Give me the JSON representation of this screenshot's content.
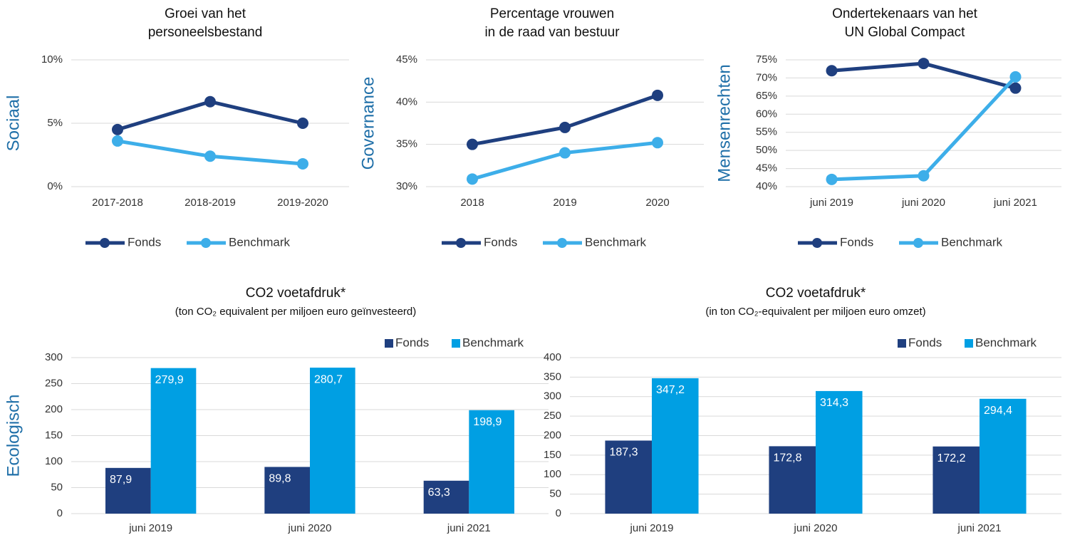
{
  "chart_data": [
    {
      "type": "line",
      "title": [
        "Groei van het",
        "personeelsbestand"
      ],
      "ylabel": "Sociaal",
      "categories": [
        "2017-2018",
        "2018-2019",
        "2019-2020"
      ],
      "series": [
        {
          "name": "Fonds",
          "color": "#1f3f7f",
          "values": [
            4.5,
            6.7,
            5.0
          ]
        },
        {
          "name": "Benchmark",
          "color": "#3daee9",
          "values": [
            3.6,
            2.4,
            1.8
          ]
        }
      ],
      "ylim": [
        0,
        10
      ],
      "yticks": [
        {
          "value": 0,
          "label": "0%"
        },
        {
          "value": 5,
          "label": "5%"
        },
        {
          "value": 10,
          "label": "10%"
        }
      ],
      "grid": true,
      "legend": "bottom"
    },
    {
      "type": "line",
      "title": [
        "Percentage vrouwen",
        "in de raad van bestuur"
      ],
      "ylabel": "Governance",
      "categories": [
        "2018",
        "2019",
        "2020"
      ],
      "series": [
        {
          "name": "Fonds",
          "color": "#1f3f7f",
          "values": [
            35,
            37,
            40.8
          ]
        },
        {
          "name": "Benchmark",
          "color": "#3daee9",
          "values": [
            30.9,
            34,
            35.2
          ]
        }
      ],
      "ylim": [
        30,
        45
      ],
      "yticks": [
        {
          "value": 30,
          "label": "30%"
        },
        {
          "value": 35,
          "label": "35%"
        },
        {
          "value": 40,
          "label": "40%"
        },
        {
          "value": 45,
          "label": "45%"
        }
      ],
      "grid": true,
      "legend": "bottom"
    },
    {
      "type": "line",
      "title": [
        "Ondertekenaars van het",
        "UN Global Compact"
      ],
      "ylabel": "Mensenrechten",
      "categories": [
        "juni 2019",
        "juni 2020",
        "juni 2021"
      ],
      "series": [
        {
          "name": "Fonds",
          "color": "#1f3f7f",
          "values": [
            72,
            74,
            67.2
          ]
        },
        {
          "name": "Benchmark",
          "color": "#3daee9",
          "values": [
            42,
            43,
            70.3
          ]
        }
      ],
      "ylim": [
        40,
        75
      ],
      "yticks": [
        {
          "value": 40,
          "label": "40%"
        },
        {
          "value": 45,
          "label": "45%"
        },
        {
          "value": 50,
          "label": "50%"
        },
        {
          "value": 55,
          "label": "55%"
        },
        {
          "value": 60,
          "label": "60%"
        },
        {
          "value": 65,
          "label": "65%"
        },
        {
          "value": 70,
          "label": "70%"
        },
        {
          "value": 75,
          "label": "75%"
        }
      ],
      "grid": true,
      "legend": "bottom"
    },
    {
      "type": "bar",
      "title": [
        "CO2 voetafdruk*"
      ],
      "subtitle": "(ton CO₂ equivalent per miljoen euro geïnvesteerd)",
      "ylabel": "Ecologisch",
      "categories": [
        "juni 2019",
        "juni 2020",
        "juni 2021"
      ],
      "series": [
        {
          "name": "Fonds",
          "color": "#1f3f7f",
          "values": [
            87.9,
            89.8,
            63.3
          ],
          "value_labels": [
            "87,9",
            "89,8",
            "63,3"
          ]
        },
        {
          "name": "Benchmark",
          "color": "#009fe3",
          "values": [
            279.9,
            280.7,
            198.9
          ],
          "value_labels": [
            "279,9",
            "280,7",
            "198,9"
          ]
        }
      ],
      "ylim": [
        0,
        300
      ],
      "yticks": [
        0,
        50,
        100,
        150,
        200,
        250,
        300
      ],
      "grid": true,
      "legend": "top-right"
    },
    {
      "type": "bar",
      "title": [
        "CO2 voetafdruk*"
      ],
      "subtitle": "(in ton CO₂-equivalent per miljoen euro omzet)",
      "categories": [
        "juni 2019",
        "juni 2020",
        "juni 2021"
      ],
      "series": [
        {
          "name": "Fonds",
          "color": "#1f3f7f",
          "values": [
            187.3,
            172.8,
            172.2
          ],
          "value_labels": [
            "187,3",
            "172,8",
            "172,2"
          ]
        },
        {
          "name": "Benchmark",
          "color": "#009fe3",
          "values": [
            347.2,
            314.3,
            294.4
          ],
          "value_labels": [
            "347,2",
            "314,3",
            "294,4"
          ]
        }
      ],
      "ylim": [
        0,
        400
      ],
      "yticks": [
        0,
        50,
        100,
        150,
        200,
        250,
        300,
        350,
        400
      ],
      "grid": true,
      "legend": "top-right"
    }
  ]
}
